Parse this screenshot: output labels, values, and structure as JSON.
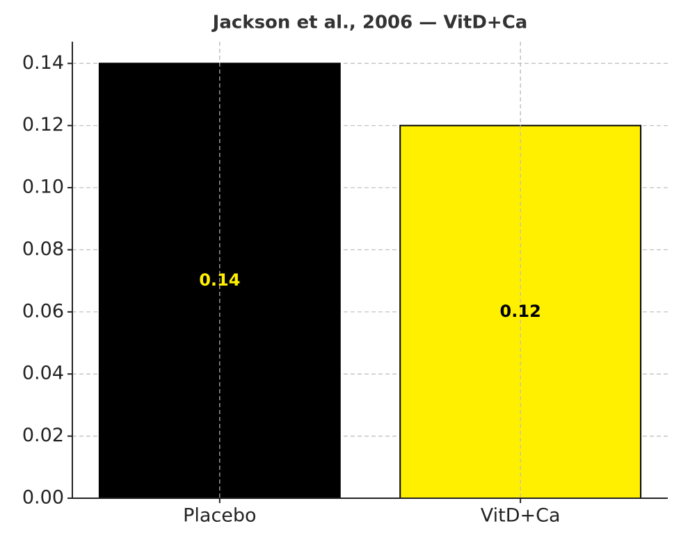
{
  "chart_data": {
    "type": "bar",
    "title": "Jackson et al., 2006 — VitD+Ca",
    "categories": [
      "Placebo",
      "VitD+Ca"
    ],
    "values": [
      0.14,
      0.12
    ],
    "colors": [
      "#000000",
      "#fff000"
    ],
    "label_colors": [
      "#fff000",
      "#000000"
    ],
    "ylim": [
      0,
      0.147
    ],
    "yticks": [
      {
        "value": 0,
        "label": "0.00"
      },
      0.02,
      0.04,
      0.06,
      0.08,
      {
        "value": 0.1,
        "label": "0.10"
      },
      0.12,
      0.14
    ],
    "grid": true
  }
}
